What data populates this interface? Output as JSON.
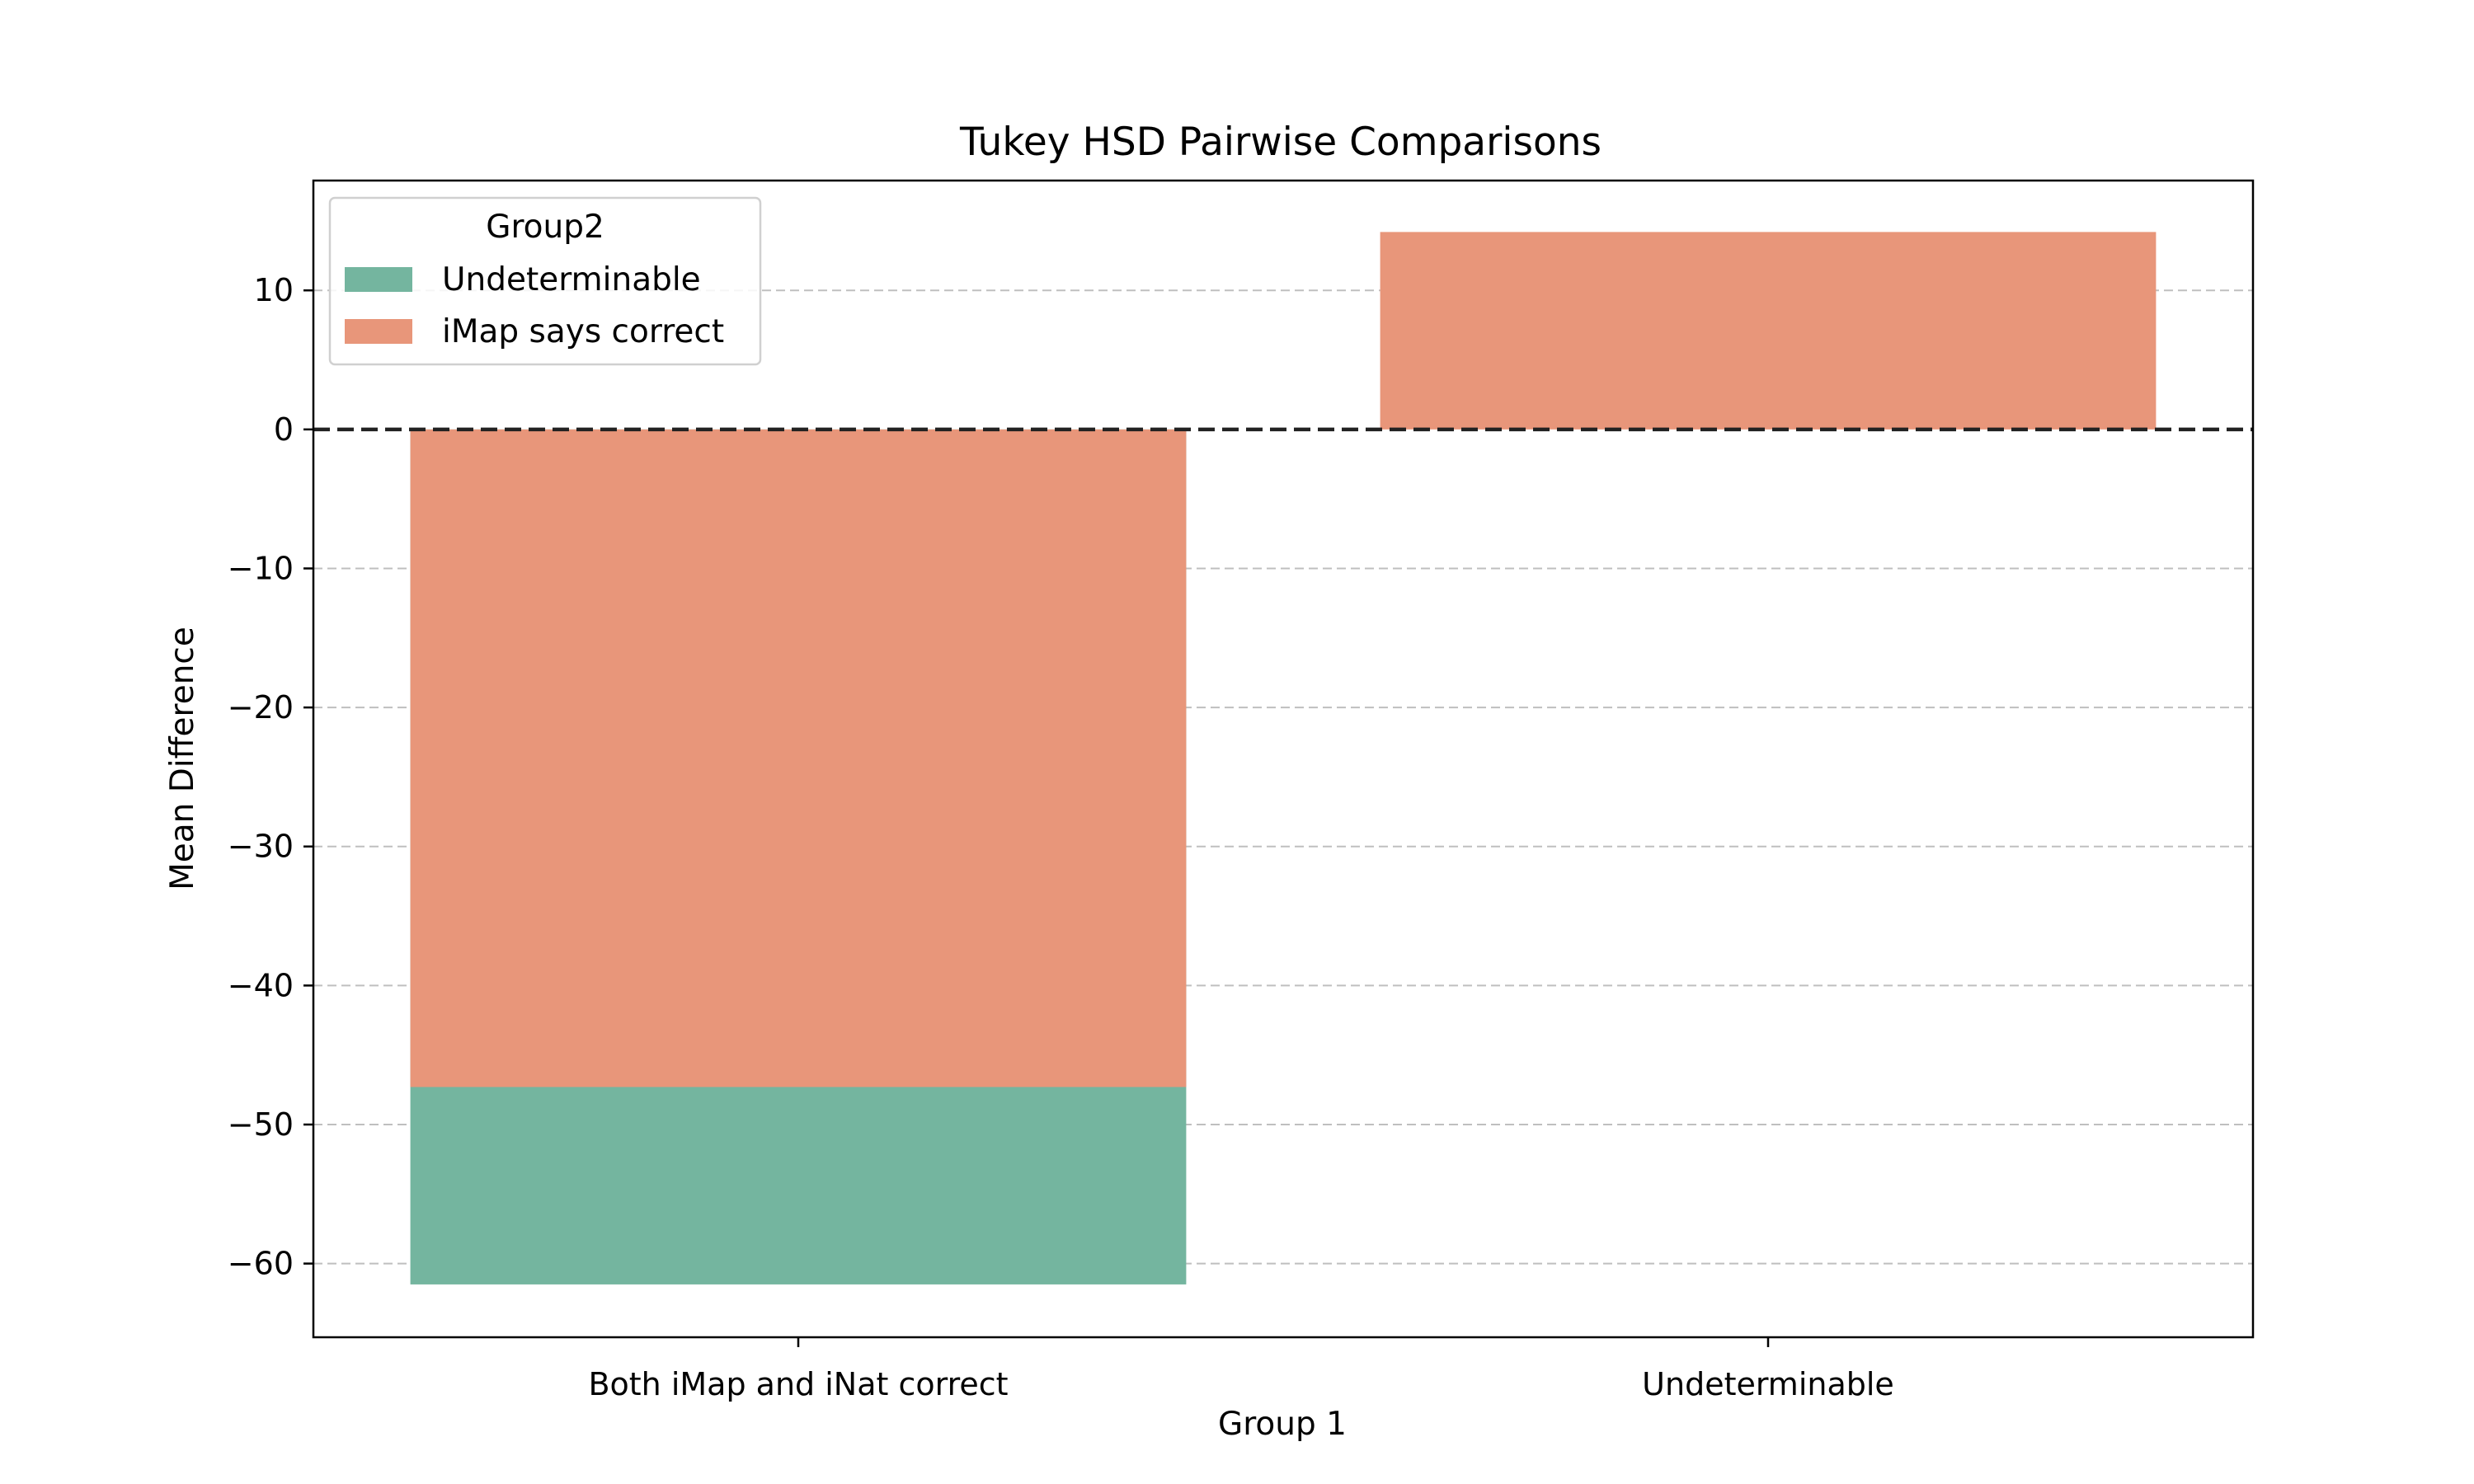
{
  "chart_data": {
    "type": "bar",
    "title": "Tukey HSD Pairwise Comparisons",
    "xlabel": "Group 1",
    "ylabel": "Mean Difference",
    "categories": [
      "Both iMap and iNat correct",
      "Undeterminable"
    ],
    "series": [
      {
        "name": "iMap says correct",
        "color": "#e8967a",
        "values": [
          -47.3,
          14.2
        ]
      },
      {
        "name": "Undeterminable",
        "color": "#74b59f",
        "values": [
          -61.5,
          null
        ]
      }
    ],
    "legend": {
      "title": "Group2",
      "placement": "top-left",
      "entries": [
        "Undeterminable",
        "iMap says correct"
      ]
    },
    "ylim": [
      -65.3,
      17.9
    ],
    "yticks": [
      10,
      0,
      -10,
      -20,
      -30,
      -40,
      -50,
      -60
    ],
    "ytick_labels": [
      "10",
      "0",
      "−10",
      "−20",
      "−30",
      "−40",
      "−50",
      "−60"
    ],
    "reference_line": 0,
    "grid": "horizontal dashed"
  }
}
